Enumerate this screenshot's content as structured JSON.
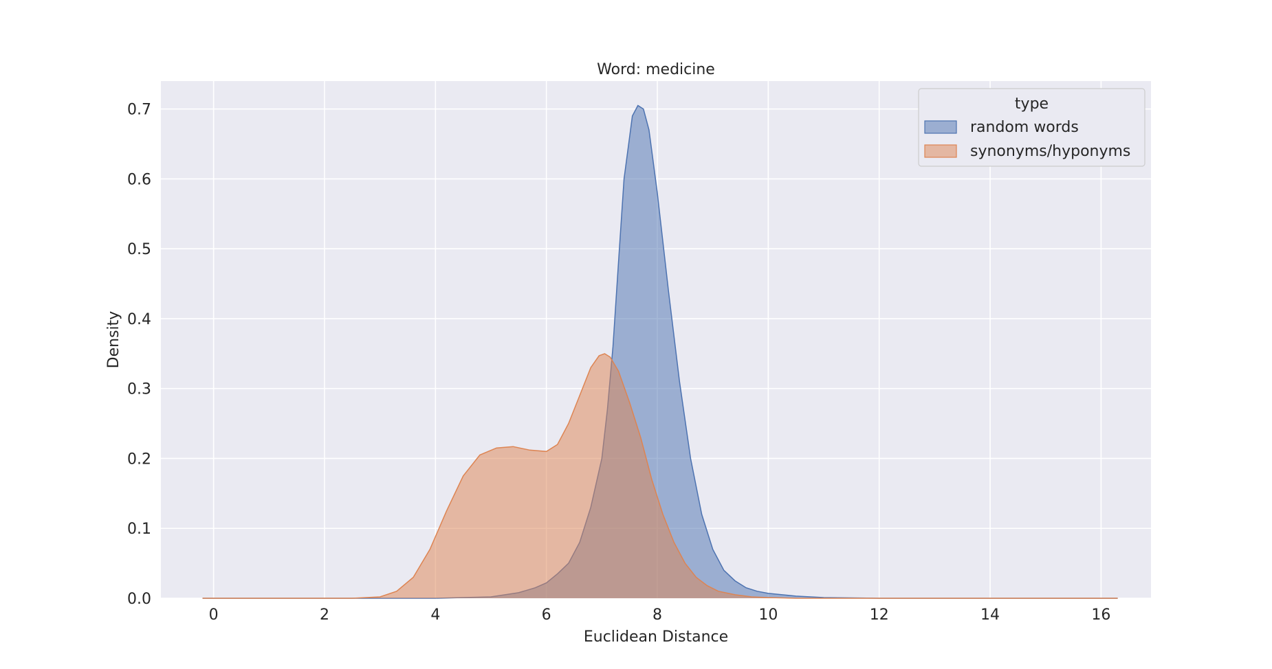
{
  "chart_data": {
    "type": "area",
    "title": "Word: medicine",
    "xlabel": "Euclidean Distance",
    "ylabel": "Density",
    "xlim": [
      -0.95,
      16.9
    ],
    "ylim": [
      0,
      0.74
    ],
    "xticks": [
      0,
      2,
      4,
      6,
      8,
      10,
      12,
      14,
      16
    ],
    "yticks": [
      0.0,
      0.1,
      0.2,
      0.3,
      0.4,
      0.5,
      0.6,
      0.7
    ],
    "xtick_labels": [
      "0",
      "2",
      "4",
      "6",
      "8",
      "10",
      "12",
      "14",
      "16"
    ],
    "ytick_labels": [
      "0.0",
      "0.1",
      "0.2",
      "0.3",
      "0.4",
      "0.5",
      "0.6",
      "0.7"
    ],
    "grid": true,
    "background": "#eaeaf2",
    "legend": {
      "title": "type",
      "placement": "upper right",
      "entries": [
        "random words",
        "synonyms/hyponyms"
      ]
    },
    "series": [
      {
        "name": "random words",
        "color": "#4c72b0",
        "fill_alpha": 0.5,
        "x": [
          -0.2,
          3.0,
          4.0,
          5.0,
          5.5,
          5.8,
          6.0,
          6.2,
          6.4,
          6.6,
          6.8,
          7.0,
          7.1,
          7.2,
          7.3,
          7.4,
          7.5,
          7.55,
          7.65,
          7.75,
          7.85,
          8.0,
          8.2,
          8.4,
          8.6,
          8.8,
          9.0,
          9.2,
          9.4,
          9.6,
          9.8,
          10.0,
          10.5,
          11.0,
          12.0,
          13.0,
          14.0,
          16.3
        ],
        "y": [
          0.0,
          0.0,
          0.0,
          0.002,
          0.008,
          0.015,
          0.022,
          0.035,
          0.05,
          0.08,
          0.13,
          0.2,
          0.27,
          0.36,
          0.48,
          0.6,
          0.66,
          0.69,
          0.705,
          0.7,
          0.67,
          0.58,
          0.44,
          0.31,
          0.2,
          0.12,
          0.07,
          0.04,
          0.025,
          0.015,
          0.01,
          0.007,
          0.003,
          0.001,
          0.0,
          0.0,
          0.0,
          0.0
        ]
      },
      {
        "name": "synonyms/hyponyms",
        "color": "#dd8452",
        "fill_alpha": 0.5,
        "x": [
          -0.2,
          2.5,
          3.0,
          3.3,
          3.6,
          3.9,
          4.2,
          4.5,
          4.8,
          5.1,
          5.4,
          5.7,
          6.0,
          6.2,
          6.4,
          6.6,
          6.8,
          6.95,
          7.05,
          7.15,
          7.3,
          7.5,
          7.7,
          7.9,
          8.1,
          8.3,
          8.5,
          8.7,
          8.9,
          9.1,
          9.4,
          9.7,
          10.0,
          10.5,
          11.0,
          12.0,
          16.3
        ],
        "y": [
          0.0,
          0.0,
          0.002,
          0.01,
          0.03,
          0.07,
          0.125,
          0.175,
          0.205,
          0.215,
          0.217,
          0.212,
          0.21,
          0.22,
          0.25,
          0.29,
          0.33,
          0.347,
          0.35,
          0.345,
          0.325,
          0.28,
          0.23,
          0.17,
          0.12,
          0.08,
          0.05,
          0.03,
          0.018,
          0.01,
          0.005,
          0.002,
          0.001,
          0.0,
          0.0,
          0.0,
          0.0
        ]
      }
    ]
  }
}
